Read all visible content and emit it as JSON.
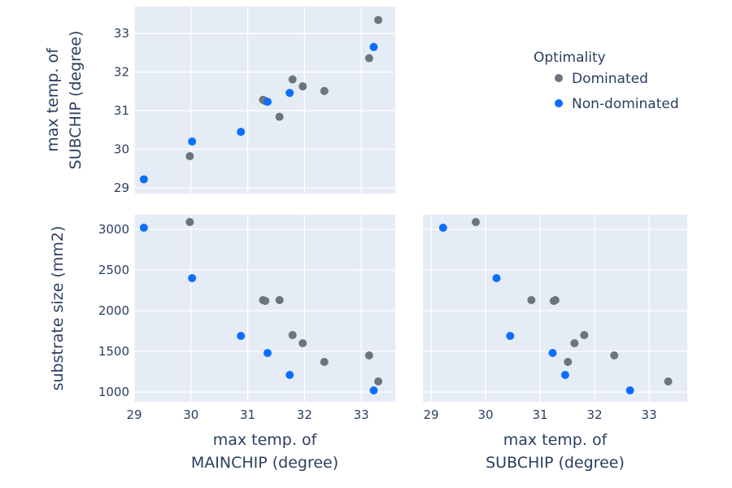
{
  "chart_data": {
    "type": "scatter",
    "legend": {
      "title": "Optimality",
      "placement": "top-right",
      "entries": [
        {
          "name": "Dominated",
          "color": "#6c757d"
        },
        {
          "name": "Non-dominated",
          "color": "#0d6efd"
        }
      ]
    },
    "grid": true,
    "background_color": "#e5ecf6",
    "variables": {
      "main": {
        "label_lines": [
          "max temp. of",
          "MAINCHIP (degree)"
        ],
        "range": [
          29.0,
          33.6
        ],
        "ticks": [
          29,
          30,
          31,
          32,
          33
        ]
      },
      "sub": {
        "label_lines": [
          "max temp. of",
          "SUBCHIP (degree)"
        ],
        "range": [
          28.85,
          33.7
        ],
        "ticks": [
          29,
          30,
          31,
          32,
          33
        ]
      },
      "size": {
        "label": "substrate size (mm2)",
        "range": [
          880,
          3180
        ],
        "ticks": [
          1000,
          1500,
          2000,
          2500,
          3000
        ]
      }
    },
    "panels": [
      {
        "id": "main-vs-sub",
        "x": "main",
        "y": "sub",
        "x_tick_labels": false,
        "y_axis_title": "sub"
      },
      {
        "id": "main-vs-size",
        "x": "main",
        "y": "size",
        "x_tick_labels": true,
        "y_axis_title": "size",
        "x_axis_title": "main"
      },
      {
        "id": "sub-vs-size",
        "x": "sub",
        "y": "size",
        "x_tick_labels": true,
        "y_tick_labels": false,
        "x_axis_title": "sub"
      }
    ],
    "points": [
      {
        "main": 29.98,
        "sub": 29.82,
        "size": 3090,
        "series": "Dominated"
      },
      {
        "main": 31.27,
        "sub": 31.28,
        "size": 2130,
        "series": "Dominated"
      },
      {
        "main": 31.31,
        "sub": 31.25,
        "size": 2120,
        "series": "Dominated"
      },
      {
        "main": 31.56,
        "sub": 30.84,
        "size": 2130,
        "series": "Dominated"
      },
      {
        "main": 31.79,
        "sub": 31.81,
        "size": 1700,
        "series": "Dominated"
      },
      {
        "main": 31.97,
        "sub": 31.63,
        "size": 1600,
        "series": "Dominated"
      },
      {
        "main": 32.35,
        "sub": 31.51,
        "size": 1370,
        "series": "Dominated"
      },
      {
        "main": 33.14,
        "sub": 32.36,
        "size": 1450,
        "series": "Dominated"
      },
      {
        "main": 33.3,
        "sub": 33.35,
        "size": 1130,
        "series": "Dominated"
      },
      {
        "main": 29.17,
        "sub": 29.22,
        "size": 3020,
        "series": "Non-dominated"
      },
      {
        "main": 30.02,
        "sub": 30.2,
        "size": 2400,
        "series": "Non-dominated"
      },
      {
        "main": 30.88,
        "sub": 30.45,
        "size": 1690,
        "series": "Non-dominated"
      },
      {
        "main": 31.35,
        "sub": 31.23,
        "size": 1480,
        "series": "Non-dominated"
      },
      {
        "main": 31.74,
        "sub": 31.46,
        "size": 1210,
        "series": "Non-dominated"
      },
      {
        "main": 33.22,
        "sub": 32.65,
        "size": 1020,
        "series": "Non-dominated"
      }
    ]
  }
}
